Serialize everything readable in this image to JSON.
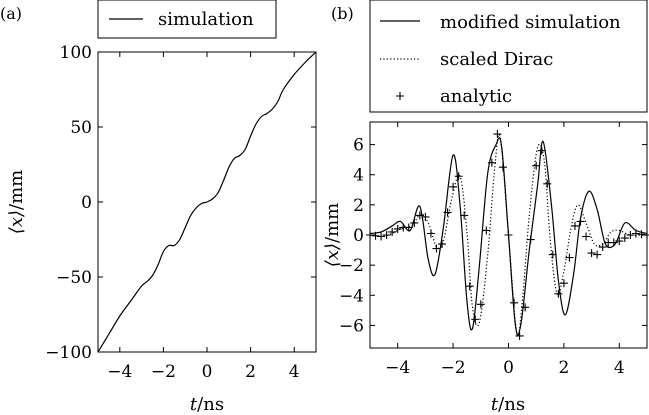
{
  "chart_data": [
    {
      "panel_label": "(a)",
      "type": "line",
      "xlabel_var": "t",
      "xlabel_unit": "/ns",
      "ylabel_var": "⟨x⟩",
      "ylabel_unit": "/mm",
      "xlim": [
        -5,
        5
      ],
      "ylim": [
        -100,
        100
      ],
      "xticks": [
        -4,
        -2,
        0,
        2,
        4
      ],
      "xtick_labels": [
        "−4",
        "−2",
        "0",
        "2",
        "4"
      ],
      "yticks": [
        -100,
        -50,
        0,
        50,
        100
      ],
      "ytick_labels": [
        "−100",
        "−50",
        "0",
        "50",
        "100"
      ],
      "legend_position": "above",
      "series": [
        {
          "name": "simulation",
          "style": "solid",
          "x": [
            -5.0,
            -4.5,
            -4.0,
            -3.5,
            -3.0,
            -2.75,
            -2.5,
            -2.25,
            -2.0,
            -1.75,
            -1.5,
            -1.25,
            -1.0,
            -0.75,
            -0.5,
            -0.25,
            0.0,
            0.25,
            0.5,
            0.75,
            1.0,
            1.25,
            1.5,
            1.75,
            2.0,
            2.25,
            2.5,
            2.75,
            3.0,
            3.25,
            3.5,
            4.0,
            4.5,
            5.0
          ],
          "y": [
            -100,
            -88,
            -76,
            -66,
            -56,
            -53,
            -49,
            -42,
            -33,
            -29,
            -29,
            -25,
            -17,
            -9,
            -4,
            -1,
            0,
            2,
            6,
            14,
            23,
            29,
            31,
            35,
            44,
            52,
            57,
            59,
            62,
            67,
            75,
            85,
            93,
            100
          ]
        }
      ]
    },
    {
      "panel_label": "(b)",
      "type": "line",
      "xlabel_var": "t",
      "xlabel_unit": "/ns",
      "ylabel_var": "⟨x⟩",
      "ylabel_unit": "/mm",
      "xlim": [
        -5,
        5
      ],
      "ylim": [
        -7.5,
        7.5
      ],
      "xticks": [
        -4,
        -2,
        0,
        2,
        4
      ],
      "xtick_labels": [
        "−4",
        "−2",
        "0",
        "2",
        "4"
      ],
      "yticks": [
        -6,
        -4,
        -2,
        0,
        2,
        4,
        6
      ],
      "ytick_labels": [
        "−6",
        "−4",
        "−2",
        "0",
        "2",
        "4",
        "6"
      ],
      "legend_position": "above",
      "series": [
        {
          "name": "modified simulation",
          "style": "solid",
          "x": [
            -5.0,
            -4.6,
            -4.2,
            -3.9,
            -3.55,
            -3.2,
            -2.9,
            -2.65,
            -2.35,
            -2.0,
            -1.75,
            -1.5,
            -1.3,
            -1.05,
            -0.75,
            -0.45,
            -0.25,
            0.0,
            0.25,
            0.45,
            0.75,
            1.05,
            1.25,
            1.55,
            1.8,
            2.05,
            2.35,
            2.6,
            2.9,
            3.2,
            3.5,
            3.85,
            4.2,
            4.6,
            5.0
          ],
          "y": [
            0.1,
            0.2,
            0.6,
            0.9,
            0.3,
            1.9,
            -1.6,
            -2.6,
            0.5,
            5.3,
            2.0,
            -4.4,
            -6.2,
            -2.0,
            4.1,
            6.0,
            5.9,
            0.0,
            -6.0,
            -5.9,
            -1.0,
            3.3,
            6.2,
            2.0,
            -3.0,
            -5.3,
            -2.6,
            1.1,
            2.9,
            1.7,
            -0.6,
            -0.6,
            0.8,
            0.3,
            0.1
          ]
        },
        {
          "name": "scaled Dirac",
          "style": "dotted",
          "x": [
            -5.0,
            -4.6,
            -4.2,
            -3.9,
            -3.5,
            -3.15,
            -2.85,
            -2.6,
            -2.35,
            -2.05,
            -1.75,
            -1.5,
            -1.3,
            -1.05,
            -0.75,
            -0.5,
            -0.3,
            0.0,
            0.3,
            0.5,
            0.75,
            1.05,
            1.3,
            1.5,
            1.75,
            2.0,
            2.25,
            2.5,
            2.8,
            3.1,
            3.4,
            3.7,
            4.0,
            4.4,
            5.0
          ],
          "y": [
            0.0,
            -0.1,
            0.1,
            0.4,
            0.6,
            1.4,
            0.6,
            -0.8,
            -0.4,
            2.4,
            3.9,
            0.2,
            -4.8,
            -5.8,
            -1.3,
            4.4,
            6.5,
            0.0,
            -6.5,
            -4.4,
            1.3,
            5.8,
            4.8,
            -0.2,
            -3.9,
            -2.4,
            0.4,
            2.0,
            0.8,
            -0.6,
            -0.6,
            0.2,
            0.3,
            0.0,
            0.0
          ]
        },
        {
          "name": "analytic",
          "style": "plus-markers",
          "x": [
            -5.0,
            -4.8,
            -4.6,
            -4.4,
            -4.2,
            -4.0,
            -3.8,
            -3.6,
            -3.4,
            -3.2,
            -3.0,
            -2.8,
            -2.6,
            -2.4,
            -2.2,
            -2.0,
            -1.8,
            -1.6,
            -1.4,
            -1.2,
            -1.0,
            -0.8,
            -0.6,
            -0.4,
            -0.2,
            0.0,
            0.2,
            0.4,
            0.6,
            0.8,
            1.0,
            1.2,
            1.4,
            1.6,
            1.8,
            2.0,
            2.2,
            2.4,
            2.6,
            2.8,
            3.0,
            3.2,
            3.4,
            3.6,
            3.8,
            4.0,
            4.2,
            4.4,
            4.6,
            4.8,
            5.0
          ],
          "y": [
            0.0,
            -0.05,
            -0.1,
            0.0,
            0.2,
            0.4,
            0.5,
            0.5,
            0.8,
            1.3,
            1.2,
            0.1,
            -0.9,
            -0.6,
            1.5,
            3.2,
            3.9,
            1.3,
            -3.4,
            -5.6,
            -4.6,
            0.3,
            4.8,
            6.7,
            4.5,
            0.0,
            -4.5,
            -6.7,
            -4.8,
            -0.3,
            4.6,
            5.6,
            3.4,
            -1.3,
            -3.9,
            -3.2,
            -1.5,
            0.6,
            0.9,
            -0.1,
            -1.2,
            -1.3,
            -0.8,
            -0.5,
            -0.5,
            -0.4,
            -0.2,
            0.0,
            0.1,
            0.05,
            0.0
          ]
        }
      ]
    }
  ]
}
